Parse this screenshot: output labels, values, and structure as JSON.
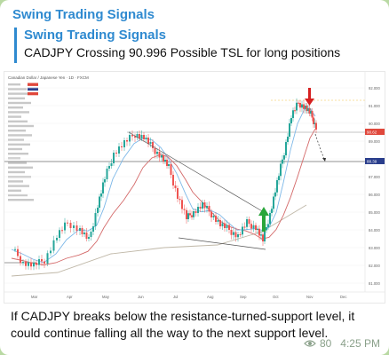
{
  "message": {
    "channel_title": "Swing Trading Signals",
    "reply": {
      "title": "Swing Trading Signals",
      "text": "CADJPY Crossing 90.996 Possible TSL for long positions"
    },
    "caption": "If CADJPY breaks below the resistance-turned-support level, it could continue falling all the way to the next support level.",
    "views": "80",
    "time": "4:25 PM"
  },
  "chart_image": {
    "symbol_header": "Canadian Dollar / Japanese Yen · 1D · FXCM",
    "price_labels": [
      "92.000",
      "91.000",
      "90.000",
      "89.000",
      "88.000",
      "87.000",
      "86.000",
      "85.000",
      "84.000",
      "83.000",
      "82.000",
      "81.000"
    ],
    "time_labels": [
      "Mar",
      "Apr",
      "May",
      "Jun",
      "Jul",
      "Aug",
      "Sep",
      "Oct",
      "Nov",
      "Dec"
    ],
    "current_price_tag": "90.62",
    "support_price_tag": "88.39",
    "colors": {
      "up_candle": "#26a69a",
      "down_candle": "#ef5350",
      "ma_fast": "#7db8e8",
      "ma_slow": "#d46a6a",
      "ma_long": "#c0b8a8",
      "arrow_up": "#2aa63a",
      "arrow_down": "#d62020"
    }
  }
}
